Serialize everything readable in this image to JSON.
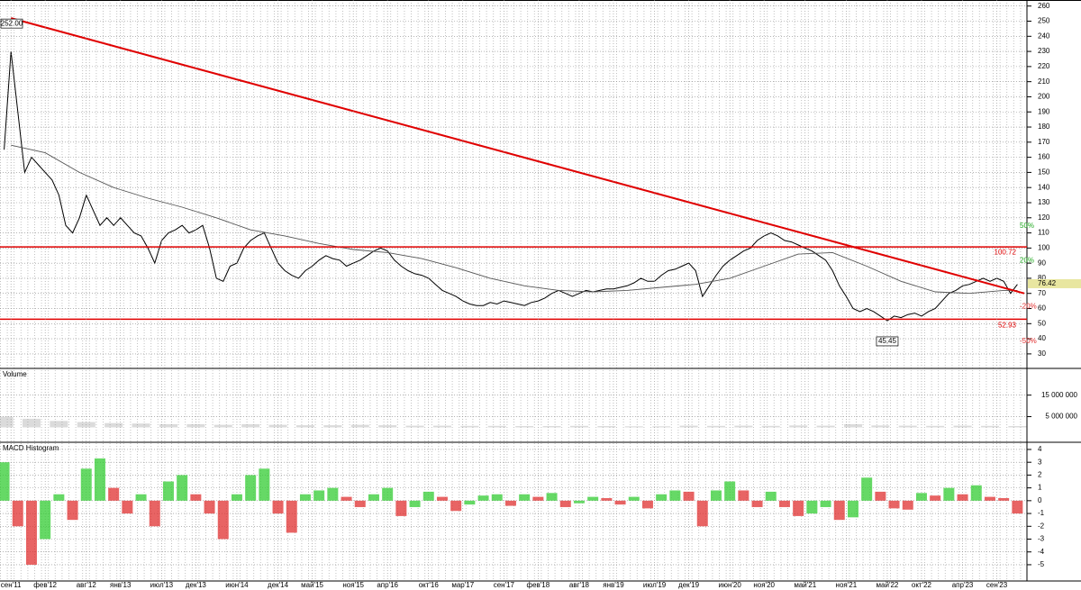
{
  "chart_data": [
    {
      "type": "line",
      "xlim": [
        -1.6,
        148.4
      ],
      "ylim": [
        21,
        264
      ],
      "yticks": [
        30,
        40,
        50,
        60,
        70,
        80,
        90,
        100,
        110,
        120,
        130,
        140,
        150,
        160,
        170,
        180,
        190,
        200,
        210,
        220,
        230,
        240,
        250,
        260
      ],
      "grid": true,
      "series": [
        {
          "color": "#000000",
          "x": [
            -1,
            0,
            1,
            2,
            3,
            4,
            5,
            6,
            7,
            8,
            9,
            10,
            11,
            12,
            13,
            14,
            15,
            16,
            17,
            18,
            19,
            20,
            21,
            22,
            23,
            24,
            25,
            26,
            27,
            28,
            29,
            30,
            31,
            32,
            33,
            34,
            35,
            36,
            37,
            38,
            39,
            40,
            41,
            42,
            43,
            44,
            45,
            46,
            47,
            48,
            49,
            50,
            51,
            52,
            53,
            54,
            55,
            56,
            57,
            58,
            59,
            60,
            61,
            62,
            63,
            64,
            65,
            66,
            67,
            68,
            69,
            70,
            71,
            72,
            73,
            74,
            75,
            76,
            77,
            78,
            79,
            80,
            81,
            82,
            83,
            84,
            85,
            86,
            87,
            88,
            89,
            90,
            91,
            92,
            93,
            94,
            95,
            96,
            97,
            98,
            99,
            100,
            101,
            102,
            103,
            104,
            105,
            106,
            107,
            108,
            109,
            110,
            111,
            112,
            113,
            114,
            115,
            116,
            117,
            118,
            119,
            120,
            121,
            122,
            123,
            124,
            125,
            126,
            127,
            128,
            129,
            130,
            131,
            132,
            133,
            134,
            135,
            136,
            137,
            138,
            139,
            140,
            141,
            142,
            143,
            144,
            145,
            146,
            147
          ],
          "values": [
            165,
            230,
            190,
            150,
            160,
            155,
            150,
            145,
            135,
            115,
            110,
            120,
            135,
            125,
            115,
            120,
            115,
            120,
            115,
            110,
            108,
            100,
            90,
            105,
            110,
            112,
            115,
            110,
            112,
            115,
            100,
            80,
            78,
            88,
            90,
            100,
            105,
            108,
            110,
            100,
            90,
            85,
            82,
            80,
            85,
            88,
            92,
            95,
            93,
            92,
            88,
            90,
            92,
            95,
            98,
            100,
            98,
            92,
            88,
            85,
            83,
            82,
            80,
            76,
            72,
            70,
            68,
            65,
            63,
            62,
            62,
            64,
            63,
            65,
            64,
            63,
            62,
            64,
            65,
            67,
            70,
            72,
            70,
            68,
            70,
            72,
            71,
            72,
            73,
            73,
            74,
            75,
            77,
            80,
            78,
            78,
            82,
            85,
            86,
            88,
            90,
            85,
            68,
            75,
            82,
            88,
            92,
            95,
            98,
            100,
            105,
            108,
            110,
            108,
            105,
            104,
            102,
            100,
            98,
            95,
            92,
            85,
            75,
            68,
            60,
            58,
            60,
            58,
            55,
            52,
            55,
            54,
            56,
            57,
            55,
            58,
            60,
            65,
            70,
            72,
            75,
            76,
            78,
            80,
            78,
            80,
            78,
            70,
            76
          ]
        },
        {
          "color": "#555555",
          "x": [
            0,
            5,
            10,
            15,
            20,
            25,
            30,
            35,
            40,
            45,
            50,
            55,
            60,
            65,
            70,
            75,
            80,
            85,
            90,
            95,
            100,
            105,
            110,
            115,
            120,
            125,
            130,
            135,
            140,
            145,
            147
          ],
          "values": [
            168,
            163,
            150,
            140,
            133,
            127,
            120,
            112,
            108,
            103,
            99,
            97,
            93,
            87,
            80,
            75,
            72,
            71,
            72,
            74,
            76,
            80,
            88,
            96,
            97,
            88,
            78,
            71,
            70,
            72,
            72
          ]
        },
        {
          "color": "#e00000",
          "x": [
            0,
            148
          ],
          "values": [
            252,
            70
          ]
        }
      ],
      "hlines": {
        "color": "#e00000",
        "values": [
          100.72,
          52.93
        ]
      },
      "annotations": [
        {
          "x": 0,
          "value": 252,
          "label": "252.00"
        },
        {
          "x": 128,
          "value": 45.45,
          "label": "45.45"
        }
      ],
      "last_price": 76.42,
      "percent_levels": {
        "values": [
          50,
          20,
          -20,
          -50
        ],
        "value_labels": [
          "50%",
          "20%",
          "-20%",
          "-50%"
        ]
      }
    },
    {
      "type": "bar",
      "title": "Volume",
      "xlim": [
        -1.6,
        148.4
      ],
      "ylim": [
        -6500000,
        27000000
      ],
      "yticks": [
        {
          "value": 15000000,
          "label": "15 000 000"
        },
        {
          "value": 5000000,
          "label": "5 000 000"
        }
      ],
      "grid": true,
      "color": "#999999",
      "x": [
        -1,
        3,
        7,
        11,
        15,
        19,
        23,
        27,
        31,
        35,
        39,
        43,
        47,
        51,
        55,
        59,
        63,
        67,
        71,
        75,
        79,
        83,
        87,
        91,
        95,
        99,
        103,
        107,
        111,
        115,
        119,
        123,
        127,
        131,
        135,
        139,
        143,
        147
      ],
      "values": [
        5000000,
        4000000,
        3000000,
        2500000,
        2000000,
        1800000,
        1500000,
        1500000,
        1200000,
        1500000,
        1200000,
        1000000,
        1000000,
        1200000,
        1000000,
        800000,
        800000,
        700000,
        700000,
        600000,
        600000,
        700000,
        600000,
        500000,
        500000,
        800000,
        700000,
        800000,
        700000,
        900000,
        800000,
        1500000,
        900000,
        800000,
        700000,
        800000,
        700000,
        600000
      ]
    },
    {
      "type": "histogram-bar",
      "title": "MACD Histogram",
      "xlim": [
        -1.6,
        148.4
      ],
      "ylim": [
        -6.27,
        4.49
      ],
      "yticks": [
        4,
        3,
        2,
        1,
        0,
        -1,
        -2,
        -3,
        -4,
        -5
      ],
      "grid": true,
      "up_color": "#33cc33",
      "down_color": "#e03030",
      "x": [
        -1,
        1,
        3,
        5,
        7,
        9,
        11,
        13,
        15,
        17,
        19,
        21,
        23,
        25,
        27,
        29,
        31,
        33,
        35,
        37,
        39,
        41,
        43,
        45,
        47,
        49,
        51,
        53,
        55,
        57,
        59,
        61,
        63,
        65,
        67,
        69,
        71,
        73,
        75,
        77,
        79,
        81,
        83,
        85,
        87,
        89,
        91,
        93,
        95,
        97,
        99,
        101,
        103,
        105,
        107,
        109,
        111,
        113,
        115,
        117,
        119,
        121,
        123,
        125,
        127,
        129,
        131,
        133,
        135,
        137,
        139,
        141,
        143,
        145,
        147
      ],
      "values": [
        3,
        -2,
        -5,
        -3,
        0.5,
        -1.5,
        2.5,
        3.3,
        1,
        -1,
        0.5,
        -2,
        1.5,
        2,
        0.5,
        -1,
        -3,
        0.5,
        2,
        2.5,
        -1,
        -2.5,
        0.5,
        0.8,
        1,
        0.3,
        -0.5,
        0.5,
        1,
        -1.2,
        -0.5,
        0.7,
        0.3,
        -0.8,
        -0.3,
        0.4,
        0.5,
        -0.4,
        0.5,
        0.3,
        0.6,
        -0.5,
        -0.2,
        0.3,
        0.2,
        -0.3,
        0.3,
        -0.6,
        0.5,
        0.8,
        0.7,
        -2,
        0.8,
        1.5,
        0.8,
        -0.5,
        0.7,
        -0.5,
        -1.2,
        -1,
        -0.5,
        -1.5,
        -1.3,
        1.8,
        0.7,
        -0.6,
        -0.7,
        0.6,
        0.4,
        1,
        0.5,
        1.2,
        0.3,
        0.2,
        -1
      ],
      "xticks": [
        {
          "value": 0,
          "label": "сен'11"
        },
        {
          "value": 5,
          "label": "фев'12"
        },
        {
          "value": 11,
          "label": "авг'12"
        },
        {
          "value": 16,
          "label": "янв'13"
        },
        {
          "value": 22,
          "label": "июл'13"
        },
        {
          "value": 27,
          "label": "дек'13"
        },
        {
          "value": 33,
          "label": "июн'14"
        },
        {
          "value": 39,
          "label": "дек'14"
        },
        {
          "value": 44,
          "label": "май'15"
        },
        {
          "value": 50,
          "label": "ноя'15"
        },
        {
          "value": 55,
          "label": "апр'16"
        },
        {
          "value": 61,
          "label": "окт'16"
        },
        {
          "value": 66,
          "label": "мар'17"
        },
        {
          "value": 72,
          "label": "сен'17"
        },
        {
          "value": 77,
          "label": "фев'18"
        },
        {
          "value": 83,
          "label": "авг'18"
        },
        {
          "value": 88,
          "label": "янв'19"
        },
        {
          "value": 94,
          "label": "июл'19"
        },
        {
          "value": 99,
          "label": "дек'19"
        },
        {
          "value": 105,
          "label": "июн'20"
        },
        {
          "value": 110,
          "label": "ноя'20"
        },
        {
          "value": 116,
          "label": "май'21"
        },
        {
          "value": 122,
          "label": "ноя'21"
        },
        {
          "value": 128,
          "label": "май'22"
        },
        {
          "value": 133,
          "label": "окт'22"
        },
        {
          "value": 139,
          "label": "апр'23"
        },
        {
          "value": 144,
          "label": "сен'23"
        }
      ]
    }
  ]
}
